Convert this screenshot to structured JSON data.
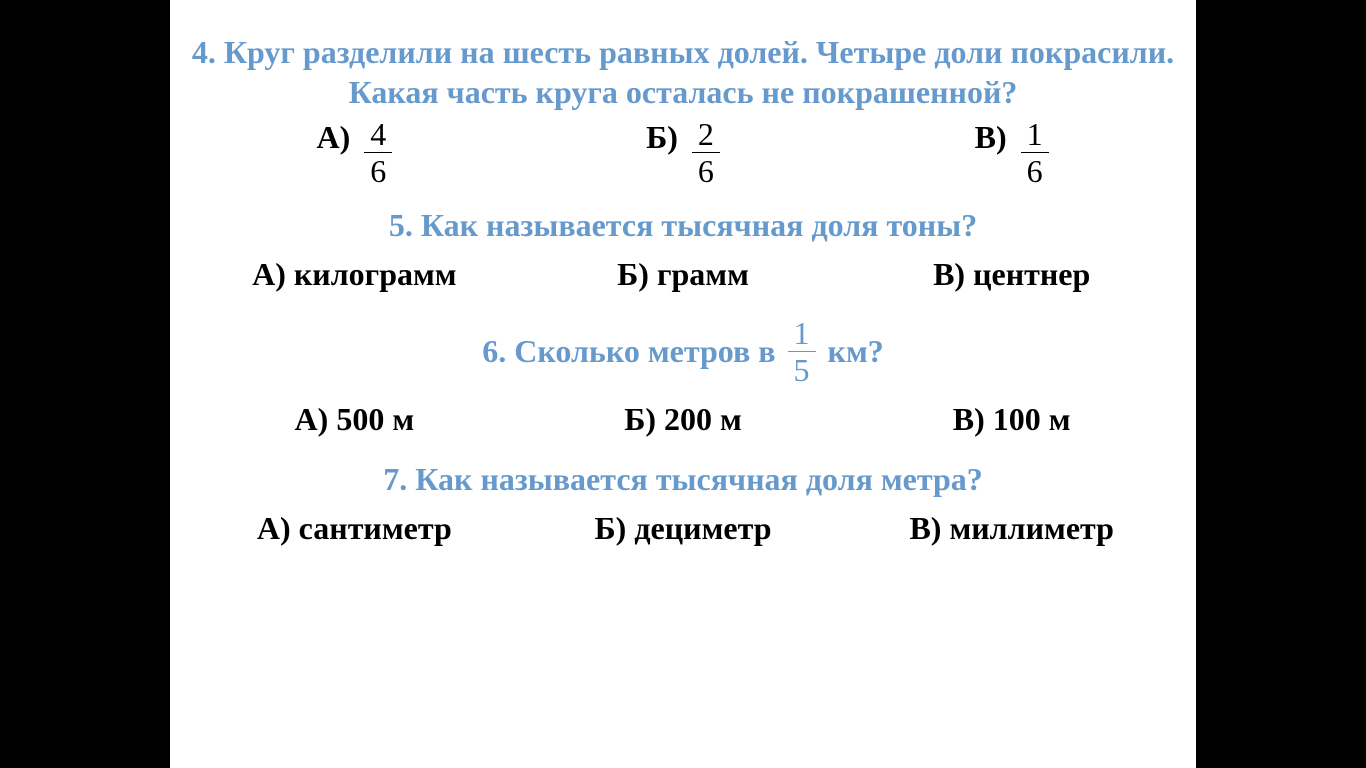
{
  "colors": {
    "bg_outer": "#000000",
    "bg_slide": "#ffffff",
    "question_text": "#6699cc",
    "answer_text": "#000000"
  },
  "fonts": {
    "family": "Times New Roman",
    "question_size_pt": 24,
    "answer_size_pt": 24,
    "question_weight": "bold",
    "answer_weight": "bold"
  },
  "q4": {
    "text": "4. Круг разделили на шесть равных долей. Четыре доли покрасили.   Какая часть круга осталась не покрашенной?",
    "answers": {
      "a_letter": "А)",
      "a_num": "4",
      "a_den": "6",
      "b_letter": "Б)",
      "b_num": "2",
      "b_den": "6",
      "v_letter": "В)",
      "v_num": "1",
      "v_den": "6"
    }
  },
  "q5": {
    "text": "5. Как называется тысячная  доля тоны?",
    "answers": {
      "a": "А) килограмм",
      "b": "Б)  грамм",
      "v": "В) центнер"
    }
  },
  "q6": {
    "text_before": "6. Сколько метров в",
    "frac_num": "1",
    "frac_den": "5",
    "text_after": "км?",
    "answers": {
      "a": "А) 500 м",
      "b": "Б)  200 м",
      "v": "В) 100 м"
    }
  },
  "q7": {
    "text": "7. Как   называется   тысячная доля метра?",
    "answers": {
      "a": "А) сантиметр",
      "b": "Б)  дециметр",
      "v": "В) миллиметр"
    }
  }
}
